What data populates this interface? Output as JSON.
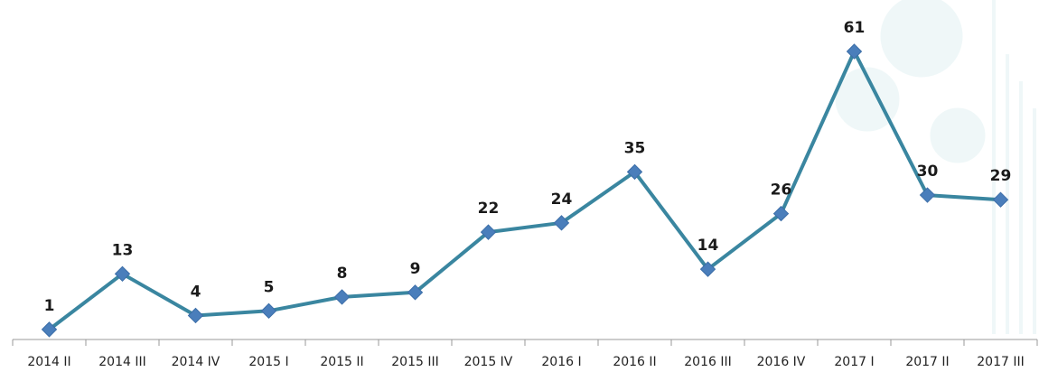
{
  "chart_data": {
    "type": "line",
    "categories": [
      "2014 II",
      "2014 III",
      "2014 IV",
      "2015 I",
      "2015 II",
      "2015 III",
      "2015 IV",
      "2016 I",
      "2016 II",
      "2016 III",
      "2016 IV",
      "2017 I",
      "2017 II",
      "2017 III"
    ],
    "values": [
      1,
      13,
      4,
      5,
      8,
      9,
      22,
      24,
      35,
      14,
      26,
      61,
      30,
      29
    ],
    "color": "#3a86a0",
    "marker_color": "#4a7ebb",
    "ylim": [
      0,
      70
    ]
  }
}
